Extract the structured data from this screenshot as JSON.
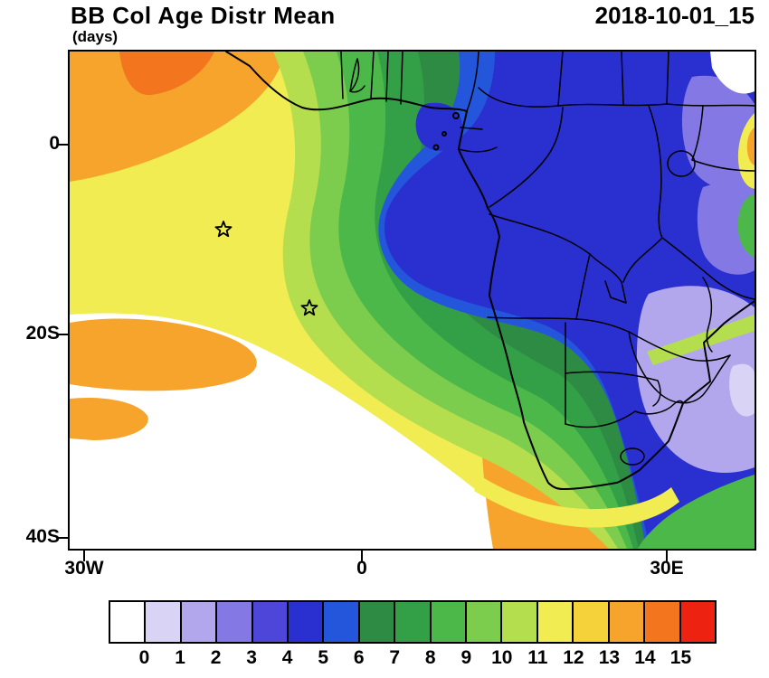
{
  "header": {
    "title": "BB Col Age Distr Mean",
    "units": "(days)",
    "timestamp": "2018-10-01_15"
  },
  "axes": {
    "y_ticks": [
      {
        "label": "0"
      },
      {
        "label": "20S"
      },
      {
        "label": "40S"
      }
    ],
    "x_ticks": [
      {
        "label": "30W"
      },
      {
        "label": "0"
      },
      {
        "label": "30E"
      }
    ]
  },
  "colorbar": {
    "colors": [
      "#ffffff",
      "#d9d3f5",
      "#b2a7ec",
      "#8478e4",
      "#4e46d8",
      "#2a2fd0",
      "#2456dc",
      "#2e8b44",
      "#33a048",
      "#4cb84a",
      "#7ccc4e",
      "#b5de4f",
      "#f0ec51",
      "#f6d23a",
      "#f6a42c",
      "#f3761f",
      "#ee2211"
    ],
    "labels": [
      "0",
      "1",
      "2",
      "3",
      "4",
      "5",
      "6",
      "7",
      "8",
      "9",
      "10",
      "11",
      "12",
      "13",
      "14",
      "15"
    ]
  },
  "chart_data": {
    "type": "heatmap",
    "title": "BB Col Age Distr Mean",
    "units": "days",
    "timestamp": "2018-10-01_15",
    "projection": "lat-lon map of southern Africa and tropical Atlantic",
    "lon_range": [
      -32,
      40
    ],
    "lat_range": [
      -41,
      10
    ],
    "x_tick_lons": [
      -30,
      0,
      30
    ],
    "y_tick_lats": [
      0,
      -20,
      -40
    ],
    "levels": [
      0,
      1,
      2,
      3,
      4,
      5,
      6,
      7,
      8,
      9,
      10,
      11,
      12,
      13,
      14,
      15
    ],
    "palette": [
      "#ffffff",
      "#d9d3f5",
      "#b2a7ec",
      "#8478e4",
      "#4e46d8",
      "#2a2fd0",
      "#2456dc",
      "#2e8b44",
      "#33a048",
      "#4cb84a",
      "#7ccc4e",
      "#b5de4f",
      "#f0ec51",
      "#f6d23a",
      "#f6a42c",
      "#f3761f",
      "#ee2211"
    ],
    "legend_position": "bottom",
    "markers": [
      {
        "symbol": "star",
        "lon": -15,
        "lat": -8.5
      },
      {
        "symbol": "star",
        "lon": -6,
        "lat": -16.5
      }
    ],
    "regions": [
      {
        "area": "central Africa / Congo basin",
        "approx_value_days": "3-5"
      },
      {
        "area": "eastern and southeastern Africa",
        "approx_value_days": "1-3 (light purple patches)"
      },
      {
        "area": "Gulf of Guinea and Angola coastal waters",
        "approx_value_days": "4-7"
      },
      {
        "area": "central tropical South Atlantic",
        "approx_value_days": "7-10"
      },
      {
        "area": "eastern tropical Atlantic west of ~15W",
        "approx_value_days": "11-13"
      },
      {
        "area": "northwest corner and Benguela coastal band",
        "approx_value_days": "13-15"
      },
      {
        "area": "far southwest Atlantic and northeast corner",
        "approx_value_days": "below 0 (white)"
      }
    ]
  }
}
